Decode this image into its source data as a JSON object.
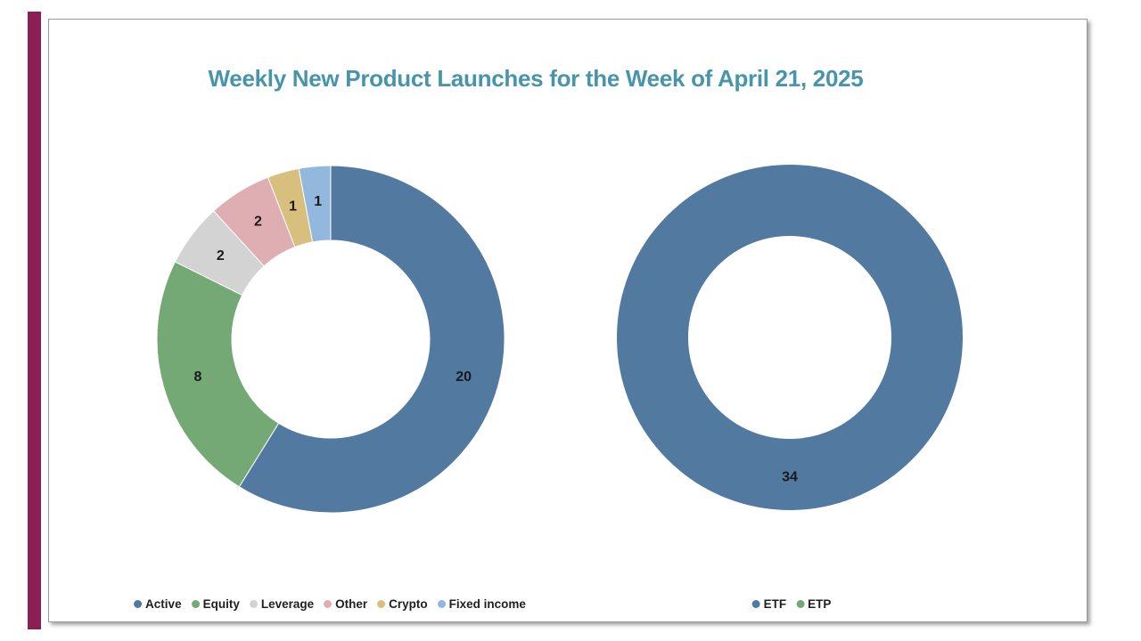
{
  "page": {
    "background_color": "#ffffff",
    "accent_bar_color": "#8C1E56",
    "frame_border_color": "#9a9a9a"
  },
  "title": {
    "text": "Weekly New Product Launches for the Week of April 21, 2025",
    "color": "#4795AA"
  },
  "chart_data": [
    {
      "type": "pie",
      "subtype": "donut",
      "name": "launches-by-category",
      "categories": [
        "Active",
        "Equity",
        "Leverage",
        "Other",
        "Crypto",
        "Fixed income"
      ],
      "values": [
        20,
        8,
        2,
        2,
        1,
        1
      ],
      "colors": [
        "#527AA1",
        "#74A874",
        "#D3D3D3",
        "#DFAEB2",
        "#D9BF7E",
        "#92B8DD"
      ],
      "total": 34,
      "label_color": "#1A1A1A",
      "legend_position": "bottom",
      "start_angle_deg": 0,
      "direction": "clockwise"
    },
    {
      "type": "pie",
      "subtype": "donut",
      "name": "launches-by-wrapper",
      "categories": [
        "ETF",
        "ETP"
      ],
      "values": [
        34,
        0
      ],
      "colors": [
        "#527AA1",
        "#74A874"
      ],
      "total": 34,
      "label_color": "#1A1A1A",
      "legend_position": "bottom",
      "start_angle_deg": 0,
      "direction": "clockwise"
    }
  ]
}
